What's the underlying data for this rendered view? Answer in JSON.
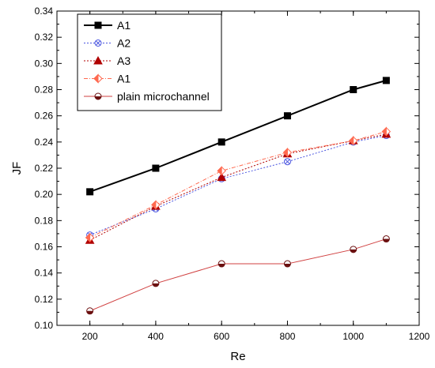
{
  "chart_data": {
    "type": "line",
    "title": "",
    "xlabel": "Re",
    "ylabel": "JF",
    "xlim": [
      100,
      1200
    ],
    "ylim": [
      0.1,
      0.34
    ],
    "x_ticks": [
      "200",
      "400",
      "600",
      "800",
      "1000",
      "1200"
    ],
    "y_ticks": [
      "0.10",
      "0.12",
      "0.14",
      "0.16",
      "0.18",
      "0.20",
      "0.22",
      "0.24",
      "0.26",
      "0.28",
      "0.30",
      "0.32",
      "0.34"
    ],
    "grid": false,
    "legend_position": "top-left",
    "x": [
      200,
      400,
      600,
      800,
      1000,
      1100
    ],
    "series": [
      {
        "name": "A1",
        "values": [
          0.202,
          0.22,
          0.24,
          0.26,
          0.28,
          0.287
        ],
        "color": "#000000",
        "marker": "square",
        "line": "solid"
      },
      {
        "name": "A2",
        "values": [
          0.169,
          0.189,
          0.212,
          0.225,
          0.24,
          0.245
        ],
        "color": "#4a55e0",
        "marker": "crossed-circle",
        "line": "dotted"
      },
      {
        "name": "A3",
        "values": [
          0.165,
          0.191,
          0.213,
          0.231,
          0.241,
          0.246
        ],
        "color": "#b00000",
        "marker": "triangle",
        "line": "dotted"
      },
      {
        "name": "A1",
        "values": [
          0.167,
          0.192,
          0.218,
          0.232,
          0.241,
          0.248
        ],
        "color": "#ff6a50",
        "marker": "half-diamond",
        "line": "dashdot"
      },
      {
        "name": "plain microchannel",
        "values": [
          0.111,
          0.132,
          0.147,
          0.147,
          0.158,
          0.166
        ],
        "color": "#d04040",
        "marker": "half-circle",
        "line": "solid"
      }
    ]
  }
}
